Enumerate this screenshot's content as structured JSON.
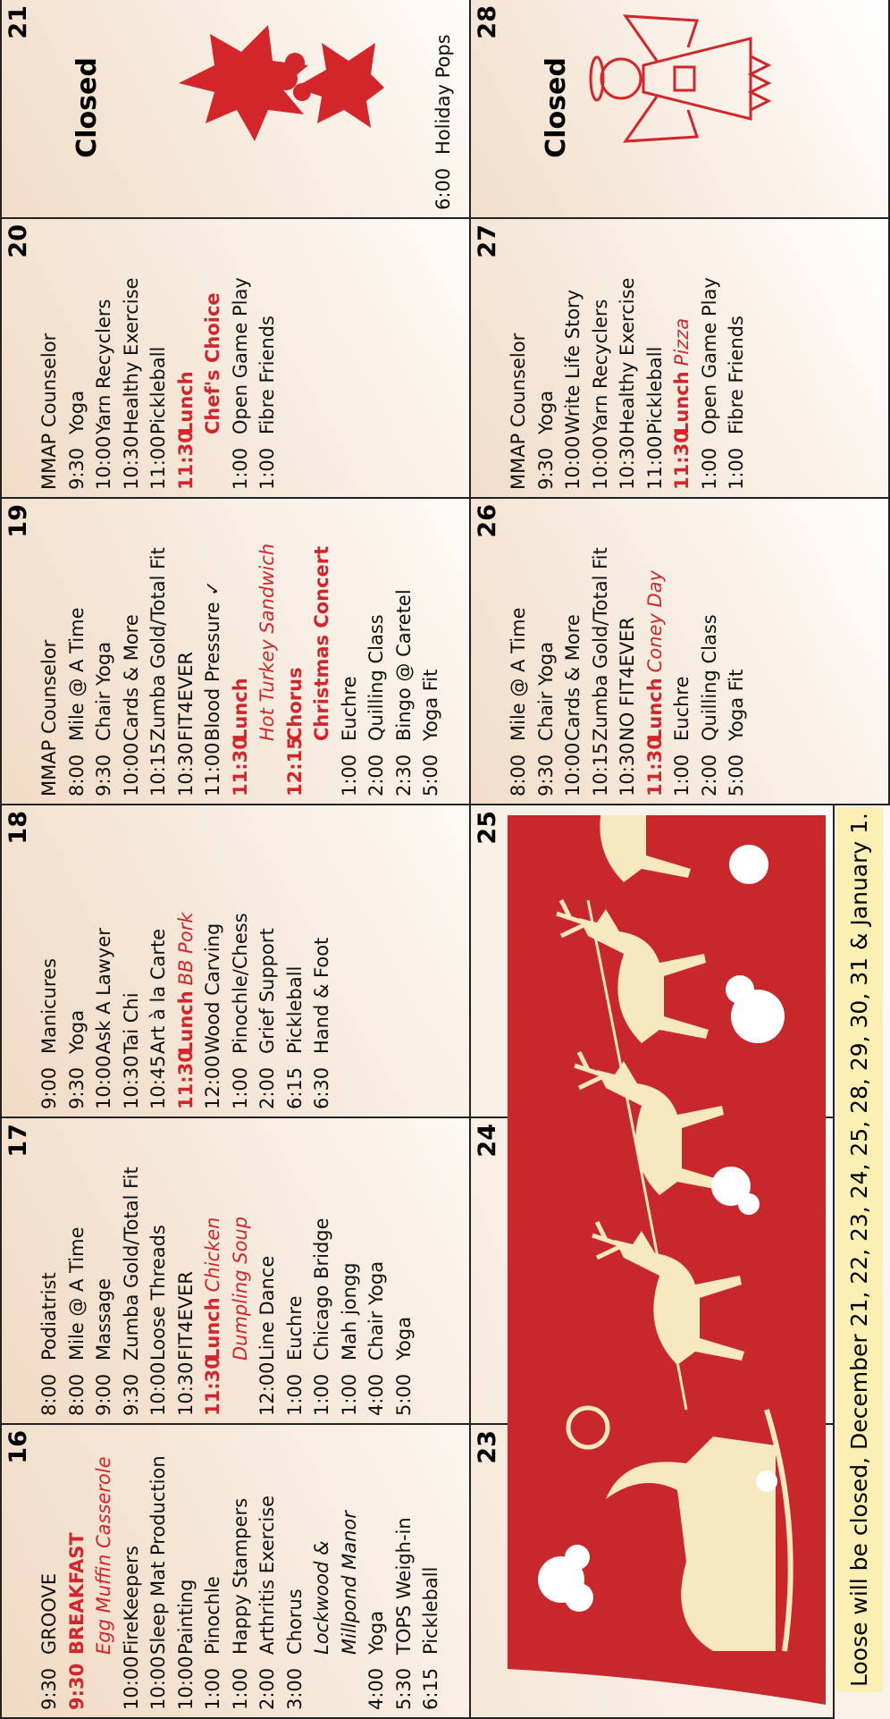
{
  "days": [
    {
      "day": "16",
      "lines": [
        {
          "time": "9:30",
          "text": "GROOVE"
        },
        {
          "time": "9:30",
          "text": "BREAKFAST",
          "style": "red",
          "more": [
            "Egg Muffin Casserole"
          ],
          "more_style": "italic"
        },
        {
          "time": "10:00",
          "text": "FireKeepers"
        },
        {
          "time": "10:00",
          "text": "Sleep Mat Production"
        },
        {
          "time": "10:00",
          "text": "Painting"
        },
        {
          "time": "1:00",
          "text": "Pinochle"
        },
        {
          "time": "1:00",
          "text": "Happy Stampers"
        },
        {
          "time": "2:00",
          "text": "Arthritis Exercise"
        },
        {
          "time": "3:00",
          "text": "Chorus",
          "more": [
            "Lockwood &",
            "Millpond Manor"
          ],
          "more_style": "italic"
        },
        {
          "time": "4:00",
          "text": "Yoga"
        },
        {
          "time": "5:30",
          "text": "TOPS Weigh-in"
        },
        {
          "time": "6:15",
          "text": "Pickleball"
        }
      ]
    },
    {
      "day": "17",
      "lines": [
        {
          "time": "8:00",
          "text": "Podiatrist"
        },
        {
          "time": "8:00",
          "text": "Mile @ A Time"
        },
        {
          "time": "9:00",
          "text": "Massage"
        },
        {
          "time": "9:30",
          "text": "Zumba Gold/Total Fit"
        },
        {
          "time": "10:00",
          "text": "Loose Threads"
        },
        {
          "time": "10:30",
          "text": "FIT4EVER"
        },
        {
          "time": "11:30",
          "text": "Lunch",
          "detail": "Chicken",
          "style": "red",
          "more": [
            "Dumpling Soup"
          ],
          "more_style": "italic"
        },
        {
          "time": "12:00",
          "text": "Line Dance"
        },
        {
          "time": "1:00",
          "text": "Euchre"
        },
        {
          "time": "1:00",
          "text": "Chicago Bridge"
        },
        {
          "time": "1:00",
          "text": "Mah jongg"
        },
        {
          "time": "4:00",
          "text": "Chair Yoga"
        },
        {
          "time": "5:00",
          "text": "Yoga"
        }
      ]
    },
    {
      "day": "18",
      "lines": [
        {
          "time": "9:00",
          "text": "Manicures"
        },
        {
          "time": "9:30",
          "text": "Yoga"
        },
        {
          "time": "10:00",
          "text": "Ask A Lawyer"
        },
        {
          "time": "10:30",
          "text": "Tai Chi"
        },
        {
          "time": "10:45",
          "text": "Art à la Carte"
        },
        {
          "time": "11:30",
          "text": "Lunch",
          "detail": "BB Pork",
          "style": "red"
        },
        {
          "time": "12:00",
          "text": "Wood Carving"
        },
        {
          "time": "1:00",
          "text": "Pinochle/Chess"
        },
        {
          "time": "2:00",
          "text": "Grief Support"
        },
        {
          "time": "6:15",
          "text": "Pickleball"
        },
        {
          "time": "6:30",
          "text": "Hand & Foot"
        }
      ]
    },
    {
      "day": "19",
      "lines": [
        {
          "text": "MMAP Counselor"
        },
        {
          "time": "8:00",
          "text": "Mile @ A Time"
        },
        {
          "time": "9:30",
          "text": "Chair Yoga"
        },
        {
          "time": "10:00",
          "text": "Cards & More"
        },
        {
          "time": "10:15",
          "text": "Zumba Gold/Total Fit"
        },
        {
          "time": "10:30",
          "text": "FIT4EVER"
        },
        {
          "time": "11:00",
          "text": "Blood Pressure ✓"
        },
        {
          "time": "11:30",
          "text": "Lunch",
          "style": "red",
          "more": [
            "Hot Turkey Sandwich"
          ],
          "more_style": "italic"
        },
        {
          "time": "12:15",
          "text": "Chorus",
          "style": "red",
          "more": [
            "Christmas Concert"
          ],
          "more_style": "bold"
        },
        {
          "time": "1:00",
          "text": "Euchre"
        },
        {
          "time": "2:00",
          "text": "Quilling Class"
        },
        {
          "time": "2:30",
          "text": "Bingo @ Caretel"
        },
        {
          "time": "5:00",
          "text": "Yoga Fit"
        }
      ]
    },
    {
      "day": "20",
      "lines": [
        {
          "text": "MMAP Counselor"
        },
        {
          "time": "9:30",
          "text": "Yoga"
        },
        {
          "time": "10:00",
          "text": "Yarn Recyclers"
        },
        {
          "time": "10:30",
          "text": "Healthy Exercise"
        },
        {
          "time": "11:00",
          "text": "Pickleball"
        },
        {
          "time": "11:30",
          "text": "Lunch",
          "style": "red",
          "more": [
            "Chef's Choice"
          ],
          "more_style": "bold"
        },
        {
          "time": "1:00",
          "text": "Open Game Play"
        },
        {
          "time": "1:00",
          "text": "Fibre Friends"
        }
      ]
    },
    {
      "day": "21",
      "closed": "Closed",
      "lines": [
        {
          "time": "6:00",
          "text": "Holiday Pops"
        }
      ]
    },
    {
      "day": "23",
      "lines": []
    },
    {
      "day": "24",
      "lines": []
    },
    {
      "day": "25",
      "lines": []
    },
    {
      "day": "26",
      "lines": [
        {
          "time": "8:00",
          "text": "Mile @ A Time"
        },
        {
          "time": "9:30",
          "text": "Chair Yoga"
        },
        {
          "time": "10:00",
          "text": "Cards & More"
        },
        {
          "time": "10:15",
          "text": "Zumba Gold/Total Fit"
        },
        {
          "time": "10:30",
          "text": "NO FIT4EVER"
        },
        {
          "time": "11:30",
          "text": "Lunch",
          "detail": "Coney Day",
          "style": "red"
        },
        {
          "time": "1:00",
          "text": "Euchre"
        },
        {
          "time": "2:00",
          "text": "Quilling Class"
        },
        {
          "time": "5:00",
          "text": "Yoga Fit"
        }
      ]
    },
    {
      "day": "27",
      "lines": [
        {
          "text": "MMAP Counselor"
        },
        {
          "time": "9:30",
          "text": "Yoga"
        },
        {
          "time": "10:00",
          "text": "Write Life Story"
        },
        {
          "time": "10:00",
          "text": "Yarn Recyclers"
        },
        {
          "time": "10:30",
          "text": "Healthy Exercise"
        },
        {
          "time": "11:00",
          "text": "Pickleball"
        },
        {
          "time": "11:30",
          "text": "Lunch",
          "detail": "Pizza",
          "style": "red"
        },
        {
          "time": "1:00",
          "text": "Open Game Play"
        },
        {
          "time": "1:00",
          "text": "Fibre Friends"
        }
      ]
    },
    {
      "day": "28",
      "closed": "Closed",
      "lines": []
    }
  ],
  "footer": "Loose will be closed, December 21, 22, 23, 24, 25, 28, 29, 30, 31 & January 1."
}
